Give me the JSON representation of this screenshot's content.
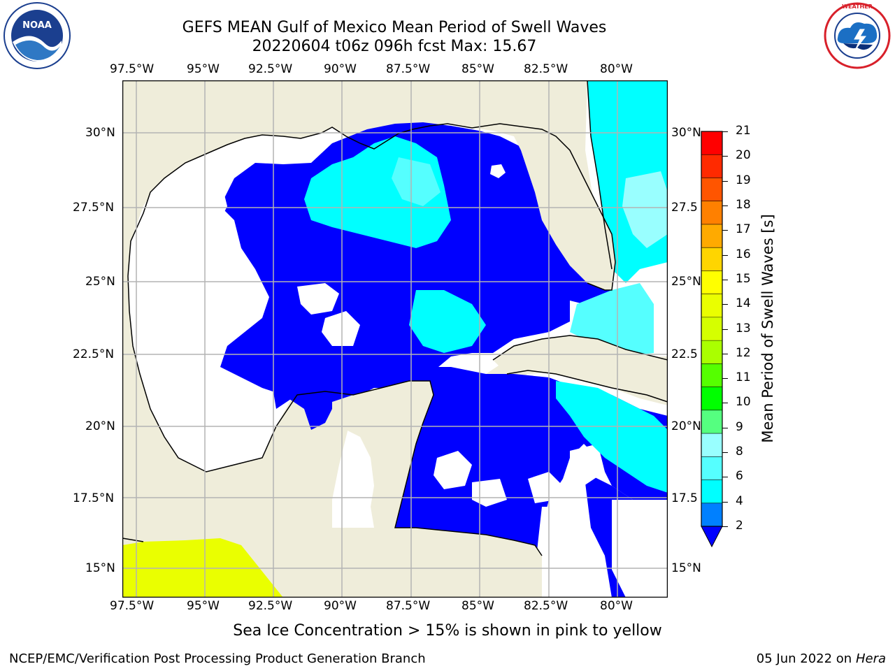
{
  "header": {
    "title": "GEFS MEAN Gulf of Mexico Mean Period of Swell Waves",
    "subtitle": "20220604 t06z 096h fcst   Max: 15.67"
  },
  "logos": {
    "noaa_text": "NOAA",
    "noaa_ring_text": "NATIONAL OCEANIC AND ATMOSPHERIC ADMINISTRATION · U.S. DEPARTMENT OF COMMERCE",
    "nws_ring_text": "NATIONAL WEATHER SERVICE"
  },
  "map": {
    "lon_ticks": [
      "97.5°W",
      "95°W",
      "92.5°W",
      "90°W",
      "87.5°W",
      "85°W",
      "82.5°W",
      "80°W"
    ],
    "lat_ticks_left": [
      "30°N",
      "27.5°N",
      "25°N",
      "22.5°N",
      "20°N",
      "17.5°N",
      "15°N"
    ],
    "lat_ticks_right": [
      "30°N",
      "27.5",
      "25°N",
      "22.5",
      "20°N",
      "17.5",
      "15°N"
    ],
    "colors": {
      "land": "#efedda",
      "ocean_blank": "#ffffff",
      "grid": "#b3b3b3"
    }
  },
  "colorbar": {
    "label": "Mean Period of Swell Waves [s]",
    "ticks": [
      "21",
      "20",
      "19",
      "18",
      "17",
      "16",
      "15",
      "14",
      "13",
      "12",
      "11",
      "10",
      "9",
      "8",
      "6",
      "4",
      "2"
    ],
    "colors": [
      "#ff0000",
      "#ff2a00",
      "#ff5500",
      "#ff8000",
      "#ffaa00",
      "#ffd500",
      "#ffff00",
      "#eaff00",
      "#d5ff00",
      "#aaff00",
      "#55ff00",
      "#00ff00",
      "#55ff80",
      "#99ffff",
      "#55ffff",
      "#00ffff",
      "#0080ff"
    ],
    "extend_color": "#0000ff"
  },
  "footer": {
    "note": "Sea Ice Concentration > 15% is shown in pink to yellow",
    "credit": "NCEP/EMC/Verification Post Processing Product Generation Branch",
    "date": "05 Jun 2022 on",
    "host": "Hera"
  }
}
